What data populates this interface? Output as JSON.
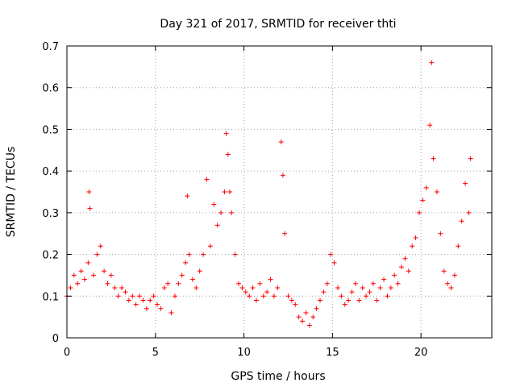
{
  "chart_data": {
    "type": "scatter",
    "title": "Day 321 of 2017, SRMTID for receiver thti",
    "xlabel": "GPS time / hours",
    "ylabel": "SRMTID / TECUs",
    "xlim": [
      0,
      24
    ],
    "ylim": [
      0,
      0.7
    ],
    "xticks": [
      0,
      5,
      10,
      15,
      20
    ],
    "xtick_labels": [
      "0",
      "5",
      "10",
      "15",
      "20"
    ],
    "yticks": [
      0,
      0.1,
      0.2,
      0.3,
      0.4,
      0.5,
      0.6,
      0.7
    ],
    "ytick_labels": [
      "0",
      "0.1",
      "0.2",
      "0.3",
      "0.4",
      "0.5",
      "0.6",
      "0.7"
    ],
    "grid": true,
    "marker": "plus",
    "color": "#ff0000",
    "series": [
      {
        "name": "SRMTID",
        "x": [
          0.0,
          0.2,
          0.4,
          0.6,
          0.8,
          1.0,
          1.2,
          1.25,
          1.3,
          1.5,
          1.7,
          1.9,
          2.1,
          2.3,
          2.5,
          2.7,
          2.9,
          3.1,
          3.3,
          3.5,
          3.7,
          3.9,
          4.1,
          4.3,
          4.5,
          4.7,
          4.9,
          5.1,
          5.3,
          5.5,
          5.7,
          5.9,
          6.1,
          6.3,
          6.5,
          6.7,
          6.8,
          6.9,
          7.1,
          7.3,
          7.5,
          7.7,
          7.9,
          8.1,
          8.3,
          8.5,
          8.7,
          8.9,
          9.0,
          9.1,
          9.2,
          9.3,
          9.5,
          9.7,
          9.9,
          10.1,
          10.3,
          10.5,
          10.7,
          10.9,
          11.1,
          11.3,
          11.5,
          11.7,
          11.9,
          12.1,
          12.2,
          12.3,
          12.5,
          12.7,
          12.9,
          13.1,
          13.3,
          13.5,
          13.7,
          13.9,
          14.1,
          14.3,
          14.5,
          14.7,
          14.9,
          15.1,
          15.3,
          15.5,
          15.7,
          15.9,
          16.1,
          16.3,
          16.5,
          16.7,
          16.9,
          17.1,
          17.3,
          17.5,
          17.7,
          17.9,
          18.1,
          18.3,
          18.5,
          18.7,
          18.9,
          19.1,
          19.3,
          19.5,
          19.7,
          19.9,
          20.1,
          20.3,
          20.5,
          20.6,
          20.7,
          20.9,
          21.1,
          21.3,
          21.5,
          21.7,
          21.9,
          22.1,
          22.3,
          22.5,
          22.7,
          22.8
        ],
        "y": [
          0.1,
          0.12,
          0.15,
          0.13,
          0.16,
          0.14,
          0.18,
          0.35,
          0.31,
          0.15,
          0.2,
          0.22,
          0.16,
          0.13,
          0.15,
          0.12,
          0.1,
          0.12,
          0.11,
          0.09,
          0.1,
          0.08,
          0.1,
          0.09,
          0.07,
          0.09,
          0.1,
          0.08,
          0.07,
          0.12,
          0.13,
          0.06,
          0.1,
          0.13,
          0.15,
          0.18,
          0.34,
          0.2,
          0.14,
          0.12,
          0.16,
          0.2,
          0.38,
          0.22,
          0.32,
          0.27,
          0.3,
          0.35,
          0.49,
          0.44,
          0.35,
          0.3,
          0.2,
          0.13,
          0.12,
          0.11,
          0.1,
          0.12,
          0.09,
          0.13,
          0.1,
          0.11,
          0.14,
          0.1,
          0.12,
          0.47,
          0.39,
          0.25,
          0.1,
          0.09,
          0.08,
          0.05,
          0.04,
          0.06,
          0.03,
          0.05,
          0.07,
          0.09,
          0.11,
          0.13,
          0.2,
          0.18,
          0.12,
          0.1,
          0.08,
          0.09,
          0.11,
          0.13,
          0.09,
          0.12,
          0.1,
          0.11,
          0.13,
          0.09,
          0.12,
          0.14,
          0.1,
          0.12,
          0.15,
          0.13,
          0.17,
          0.19,
          0.16,
          0.22,
          0.24,
          0.3,
          0.33,
          0.36,
          0.51,
          0.66,
          0.43,
          0.35,
          0.25,
          0.16,
          0.13,
          0.12,
          0.15,
          0.22,
          0.28,
          0.37,
          0.3,
          0.43
        ]
      }
    ]
  }
}
